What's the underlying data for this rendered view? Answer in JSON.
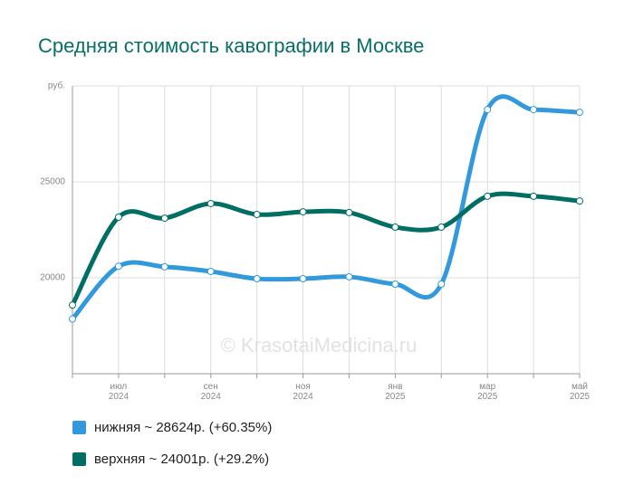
{
  "chart_data": {
    "type": "line",
    "title": "Средняя стоимость кавографии в Москве",
    "watermark": "© KrasotaiMedicina.ru",
    "categories": [
      null,
      "июл\n2024",
      null,
      "сен\n2024",
      null,
      "ноя\n2024",
      null,
      "янв\n2025",
      null,
      "мар\n2025",
      null,
      "май\n2025"
    ],
    "series": [
      {
        "name": "нижняя ~ 28624р. (+60.35%)",
        "color": "#3399dd",
        "values": [
          17851,
          20600,
          20570,
          20330,
          19950,
          19950,
          20050,
          19670,
          19670,
          28770,
          28770,
          28624
        ]
      },
      {
        "name": "верхняя ~ 24001р. (+29.2%)",
        "color": "#006e63",
        "values": [
          18577,
          23160,
          23110,
          23870,
          23300,
          23440,
          23400,
          22640,
          22640,
          24250,
          24250,
          24001
        ]
      }
    ],
    "ylim": [
      15000,
      30000
    ],
    "yticks": [
      20000,
      25000,
      {
        "value": 30000,
        "label": "руб."
      }
    ],
    "grid": true
  }
}
